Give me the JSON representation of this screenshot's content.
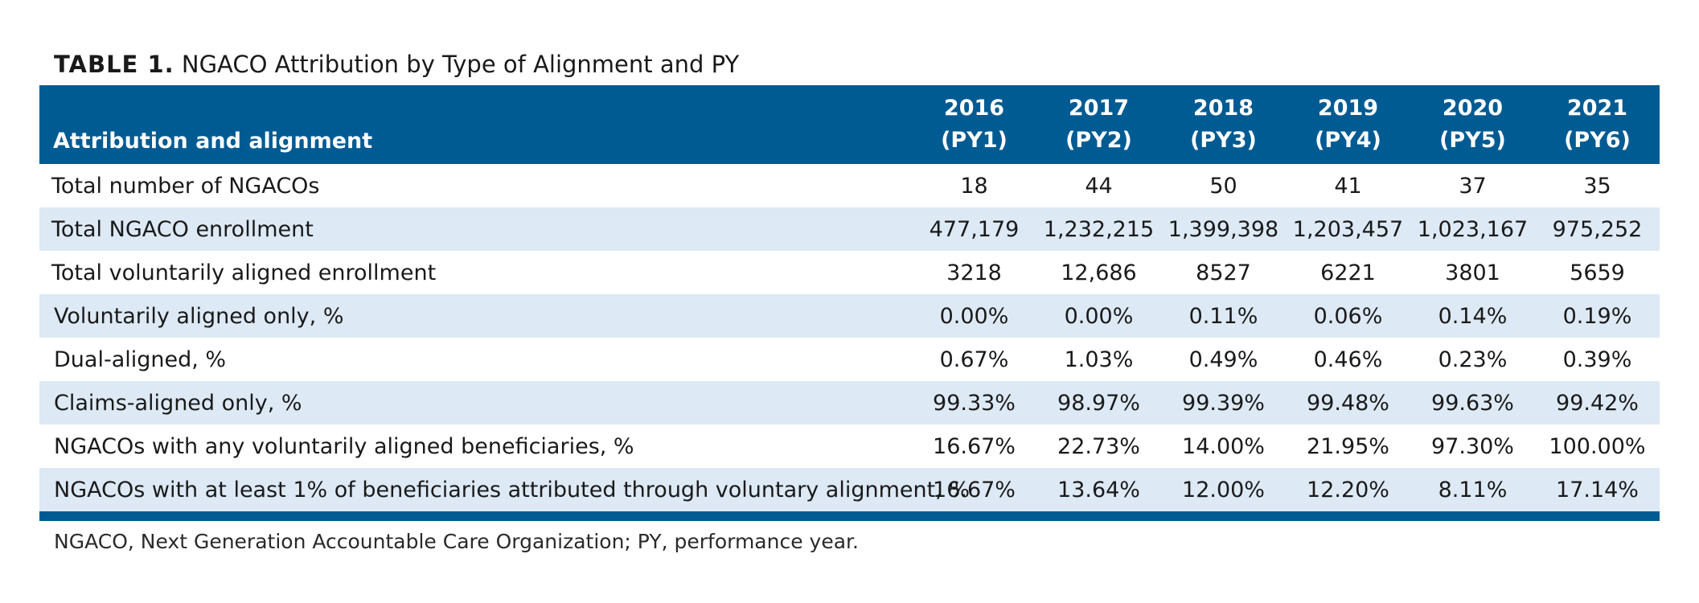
{
  "title": {
    "label": "TABLE 1.",
    "text": "NGACO Attribution by Type of Alignment and PY"
  },
  "header": {
    "first": "Attribution and alignment",
    "years": [
      {
        "year": "2016",
        "py": "(PY1)"
      },
      {
        "year": "2017",
        "py": "(PY2)"
      },
      {
        "year": "2018",
        "py": "(PY3)"
      },
      {
        "year": "2019",
        "py": "(PY4)"
      },
      {
        "year": "2020",
        "py": "(PY5)"
      },
      {
        "year": "2021",
        "py": "(PY6)"
      }
    ]
  },
  "rows": [
    {
      "label": "Total number of NGACOs",
      "values": [
        "18",
        "44",
        "50",
        "41",
        "37",
        "35"
      ]
    },
    {
      "label": "Total NGACO enrollment",
      "values": [
        "477,179",
        "1,232,215",
        "1,399,398",
        "1,203,457",
        "1,023,167",
        "975,252"
      ]
    },
    {
      "label": "Total voluntarily aligned enrollment",
      "values": [
        "3218",
        "12,686",
        "8527",
        "6221",
        "3801",
        "5659"
      ]
    },
    {
      "label": "Voluntarily aligned only, %",
      "values": [
        "0.00%",
        "0.00%",
        "0.11%",
        "0.06%",
        "0.14%",
        "0.19%"
      ]
    },
    {
      "label": "Dual-aligned, %",
      "values": [
        "0.67%",
        "1.03%",
        "0.49%",
        "0.46%",
        "0.23%",
        "0.39%"
      ]
    },
    {
      "label": "Claims-aligned only, %",
      "values": [
        "99.33%",
        "98.97%",
        "99.39%",
        "99.48%",
        "99.63%",
        "99.42%"
      ]
    },
    {
      "label": "NGACOs with any voluntarily aligned beneficiaries, %",
      "values": [
        "16.67%",
        "22.73%",
        "14.00%",
        "21.95%",
        "97.30%",
        "100.00%"
      ]
    },
    {
      "label": "NGACOs with at least 1% of beneficiaries attributed through voluntary alignment, %",
      "values": [
        "16.67%",
        "13.64%",
        "12.00%",
        "12.20%",
        "8.11%",
        "17.14%"
      ]
    }
  ],
  "footnote": "NGACO, Next Generation Accountable Care Organization; PY, performance year.",
  "colors": {
    "header_bg": "#005b93",
    "stripe_bg": "#dde9f5",
    "header_text": "#ffffff"
  }
}
